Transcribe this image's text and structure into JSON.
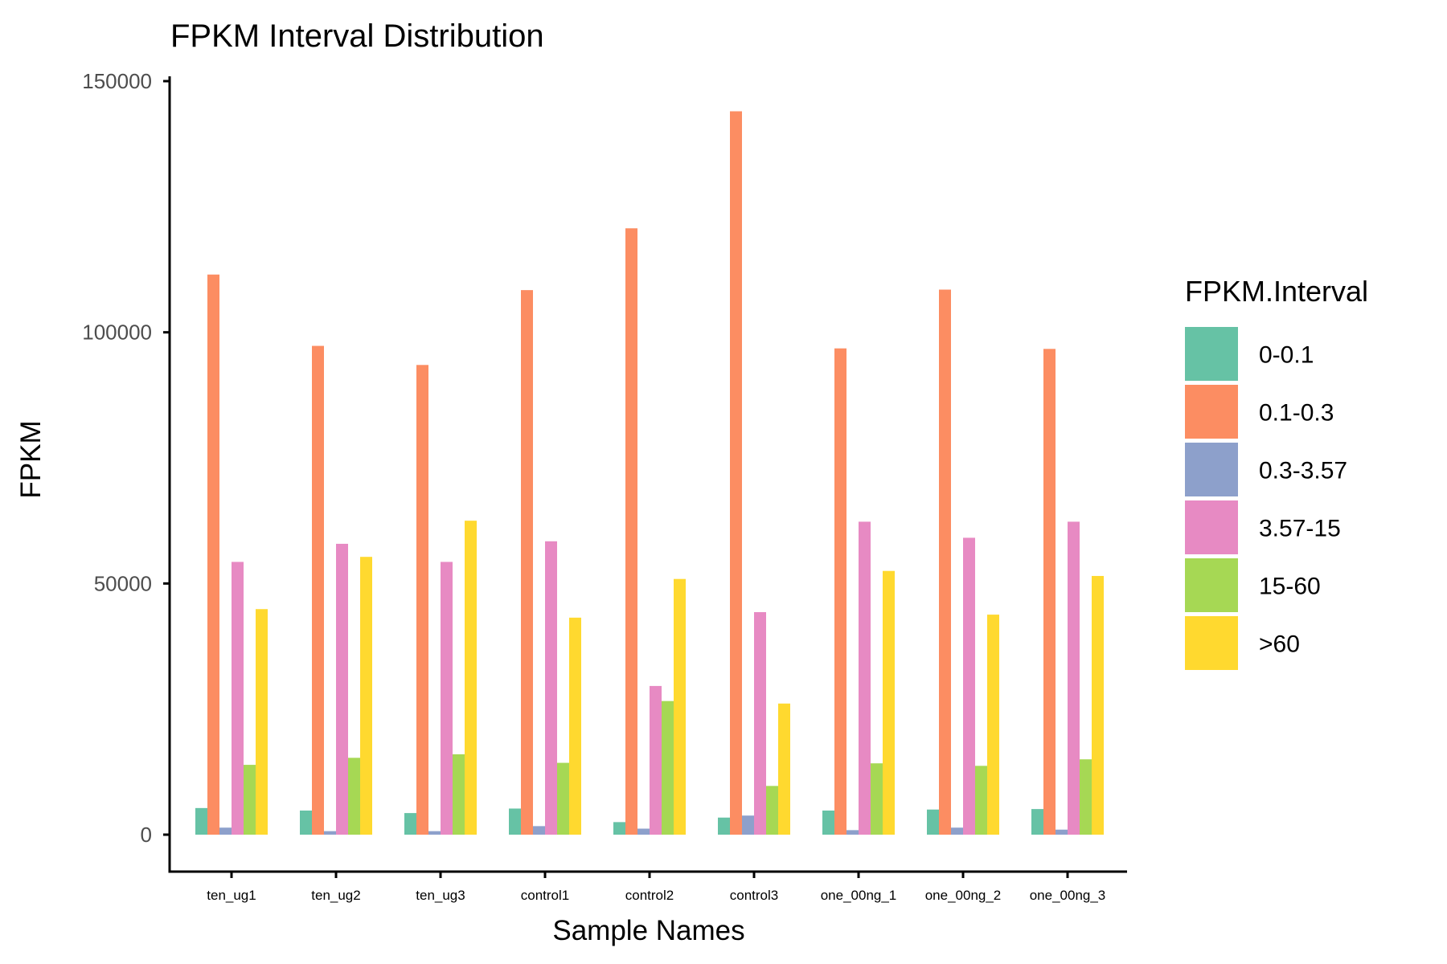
{
  "chart_data": {
    "type": "bar",
    "title": "FPKM Interval Distribution",
    "xlabel": "Sample Names",
    "ylabel": "FPKM",
    "ylim": [
      -7000,
      150000
    ],
    "yticks": [
      0,
      50000,
      100000,
      150000
    ],
    "ytick_labels": [
      "0",
      "50000",
      "100000",
      "150000"
    ],
    "grid": false,
    "legend_title": "FPKM.Interval",
    "legend_position": "right",
    "categories": [
      "ten_ug1",
      "ten_ug2",
      "ten_ug3",
      "control1",
      "control2",
      "control3",
      "one_00ng_1",
      "one_00ng_2",
      "one_00ng_3"
    ],
    "series": [
      {
        "name": "0-0.1",
        "color": "#66c2a5",
        "values": [
          5300,
          4800,
          4300,
          5200,
          2500,
          3400,
          4800,
          5000,
          5100
        ]
      },
      {
        "name": "0.1-0.3",
        "color": "#fc8d62",
        "values": [
          111500,
          97300,
          93500,
          108400,
          120700,
          144000,
          96800,
          108500,
          96700
        ]
      },
      {
        "name": "0.3-3.57",
        "color": "#8da0cb",
        "values": [
          1400,
          700,
          700,
          1700,
          1200,
          3800,
          900,
          1400,
          1000
        ]
      },
      {
        "name": "3.57-15",
        "color": "#e78ac3",
        "values": [
          54300,
          57900,
          54300,
          58400,
          29600,
          44300,
          62300,
          59100,
          62300
        ]
      },
      {
        "name": "15-60",
        "color": "#a6d854",
        "values": [
          13900,
          15300,
          16000,
          14300,
          26600,
          9700,
          14200,
          13700,
          15000
        ]
      },
      {
        "name": ">60",
        "color": "#ffd92f",
        "values": [
          44900,
          55300,
          62500,
          43200,
          50900,
          26100,
          52500,
          43800,
          51500
        ]
      }
    ]
  }
}
